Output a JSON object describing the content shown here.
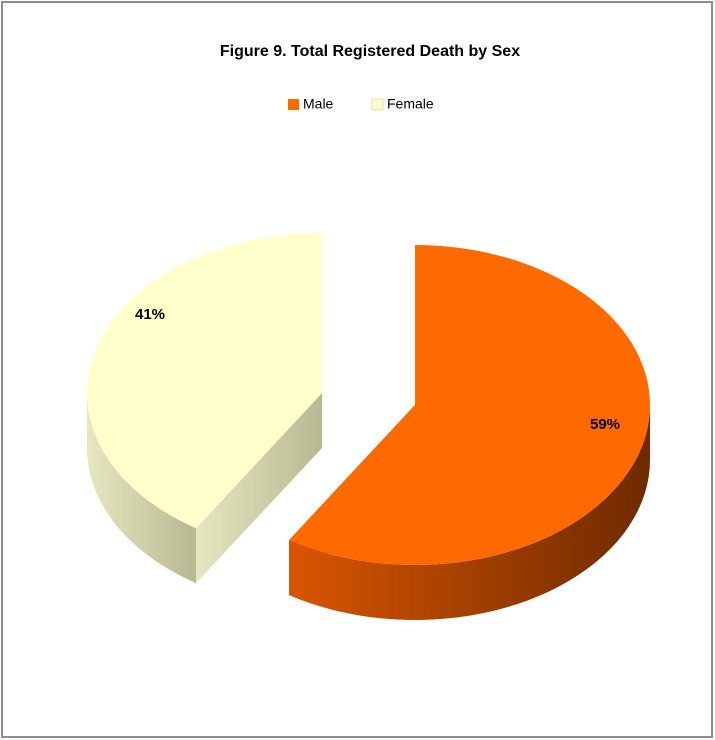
{
  "chart_data": {
    "type": "pie3d",
    "title": "Figure 9. Total Registered Death by Sex",
    "categories": [
      "Male",
      "Female"
    ],
    "values": [
      59,
      41
    ],
    "value_labels": [
      "59%",
      "41%"
    ],
    "colors": [
      "#ff6a00",
      "#ffffcc"
    ],
    "legend": "top"
  }
}
